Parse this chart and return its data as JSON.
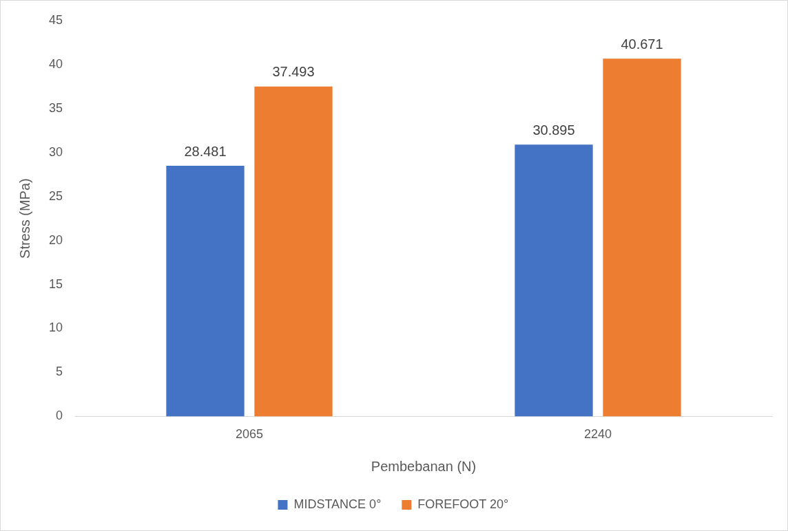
{
  "chart_data": {
    "type": "bar",
    "xlabel": "Pembebanan (N)",
    "ylabel": "Stress (MPa)",
    "categories": [
      "2065",
      "2240"
    ],
    "series": [
      {
        "name": "MIDSTANCE 0°",
        "color": "#4472c4",
        "values": [
          28.481,
          30.895
        ]
      },
      {
        "name": "FOREFOOT 20°",
        "color": "#ed7d31",
        "values": [
          37.493,
          40.671
        ]
      }
    ],
    "ylim": [
      0,
      45
    ],
    "yticks": [
      0,
      5,
      10,
      15,
      20,
      25,
      30,
      35,
      40,
      45
    ],
    "grid": false,
    "legend": "bottom",
    "data_labels": true
  }
}
